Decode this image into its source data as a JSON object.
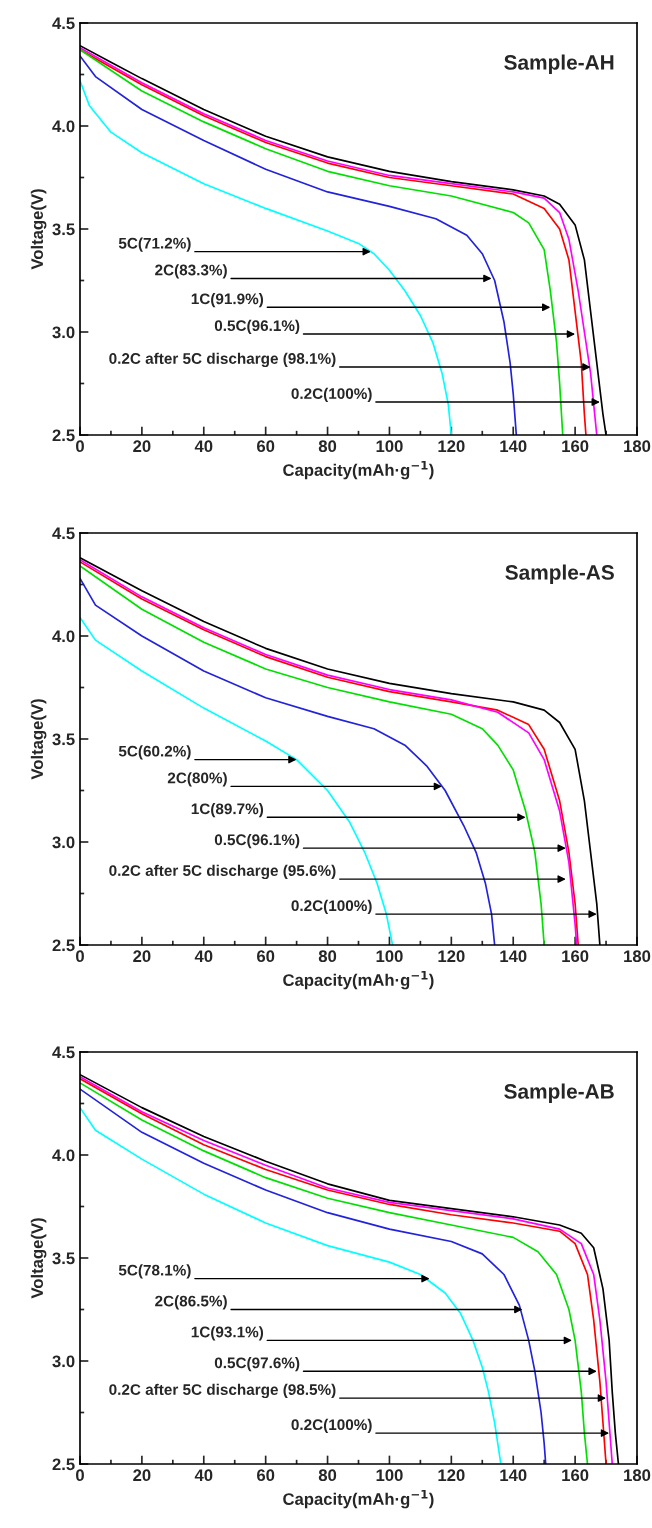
{
  "chart_data": [
    {
      "type": "line",
      "title": "Sample-AH",
      "xlabel": "Capacity(mAh·g$^{−1}$)",
      "ylabel": "Voltage(V)",
      "xlim": [
        0,
        180
      ],
      "ylim": [
        2.5,
        4.5
      ],
      "xticks": [
        0,
        {
          "value": 10,
          "label": null
        },
        20,
        {
          "value": 30,
          "label": null
        },
        40,
        {
          "value": 50,
          "label": null
        },
        60,
        {
          "value": 70,
          "label": null
        },
        80,
        {
          "value": 90,
          "label": null
        },
        100,
        {
          "value": 110,
          "label": null
        },
        120,
        {
          "value": 130,
          "label": null
        },
        140,
        {
          "value": 150,
          "label": null
        },
        160,
        {
          "value": 170,
          "label": null
        },
        180
      ],
      "yticks": [
        {
          "value": 2.5,
          "label": "2.5"
        },
        {
          "value": 2.75,
          "label": null
        },
        {
          "value": 3.0,
          "label": "3.0"
        },
        {
          "value": 3.25,
          "label": null
        },
        {
          "value": 3.5,
          "label": "3.5"
        },
        {
          "value": 3.75,
          "label": null
        },
        {
          "value": 4.0,
          "label": "4.0"
        },
        {
          "value": 4.25,
          "label": null
        },
        {
          "value": 4.5,
          "label": "4.5"
        }
      ],
      "grid": false,
      "legend": false,
      "marker": "none",
      "line_style": "solid",
      "series": [
        {
          "color": "#000000",
          "x": [
            0,
            10,
            20,
            40,
            60,
            80,
            100,
            120,
            140,
            150,
            155,
            160,
            163,
            165,
            167,
            169,
            170
          ],
          "values": [
            4.39,
            4.31,
            4.23,
            4.08,
            3.95,
            3.85,
            3.78,
            3.73,
            3.69,
            3.66,
            3.62,
            3.52,
            3.35,
            3.1,
            2.85,
            2.6,
            2.5
          ]
        },
        {
          "color": "#ff00ff",
          "x": [
            0,
            20,
            40,
            60,
            80,
            100,
            120,
            140,
            150,
            155,
            158,
            161,
            163,
            165,
            166,
            167
          ],
          "values": [
            4.38,
            4.21,
            4.06,
            3.93,
            3.83,
            3.76,
            3.72,
            3.68,
            3.65,
            3.58,
            3.45,
            3.2,
            3.0,
            2.8,
            2.65,
            2.5
          ]
        },
        {
          "color": "#ff0000",
          "x": [
            0,
            20,
            40,
            60,
            80,
            100,
            120,
            140,
            150,
            155,
            158,
            160,
            162,
            163,
            163.5
          ],
          "values": [
            4.37,
            4.2,
            4.05,
            3.92,
            3.82,
            3.75,
            3.71,
            3.67,
            3.6,
            3.5,
            3.35,
            3.1,
            2.85,
            2.6,
            2.5
          ]
        },
        {
          "color": "#00e000",
          "x": [
            0,
            20,
            40,
            60,
            80,
            100,
            120,
            140,
            145,
            150,
            152,
            154,
            155,
            156
          ],
          "values": [
            4.37,
            4.17,
            4.02,
            3.89,
            3.78,
            3.71,
            3.66,
            3.58,
            3.53,
            3.4,
            3.2,
            2.95,
            2.75,
            2.5
          ]
        },
        {
          "color": "#2222dd",
          "x": [
            0,
            5,
            20,
            40,
            60,
            80,
            100,
            115,
            125,
            130,
            134,
            137,
            139,
            140,
            141
          ],
          "values": [
            4.34,
            4.24,
            4.08,
            3.93,
            3.79,
            3.68,
            3.61,
            3.55,
            3.47,
            3.38,
            3.25,
            3.05,
            2.85,
            2.7,
            2.5
          ]
        },
        {
          "color": "#00ffff",
          "x": [
            0,
            3,
            10,
            20,
            40,
            60,
            80,
            90,
            95,
            100,
            105,
            110,
            114,
            117,
            119,
            120
          ],
          "values": [
            4.22,
            4.1,
            3.97,
            3.87,
            3.72,
            3.6,
            3.49,
            3.43,
            3.38,
            3.3,
            3.2,
            3.08,
            2.95,
            2.8,
            2.65,
            2.5
          ]
        }
      ],
      "annotations": [
        {
          "text": "5C(71.2%)",
          "x": 94,
          "y": 3.39
        },
        {
          "text": "2C(83.3%)",
          "x": 133,
          "y": 3.26
        },
        {
          "text": "1C(91.9%)",
          "x": 152,
          "y": 3.12
        },
        {
          "text": "0.5C(96.1%)",
          "x": 160,
          "y": 2.99
        },
        {
          "text": "0.2C after 5C discharge (98.1%)",
          "x": 165,
          "y": 2.83
        },
        {
          "text": "0.2C(100%)",
          "x": 168,
          "y": 2.66
        }
      ]
    },
    {
      "type": "line",
      "title": "Sample-AS",
      "xlabel": "Capacity(mAh·g$^{−1}$)",
      "ylabel": "Voltage(V)",
      "xlim": [
        0,
        180
      ],
      "ylim": [
        2.5,
        4.5
      ],
      "xticks": [
        0,
        {
          "value": 10,
          "label": null
        },
        20,
        {
          "value": 30,
          "label": null
        },
        40,
        {
          "value": 50,
          "label": null
        },
        60,
        {
          "value": 70,
          "label": null
        },
        80,
        {
          "value": 90,
          "label": null
        },
        100,
        {
          "value": 110,
          "label": null
        },
        120,
        {
          "value": 130,
          "label": null
        },
        140,
        {
          "value": 150,
          "label": null
        },
        160,
        {
          "value": 170,
          "label": null
        },
        180
      ],
      "yticks": [
        {
          "value": 2.5,
          "label": "2.5"
        },
        {
          "value": 2.75,
          "label": null
        },
        {
          "value": 3.0,
          "label": "3.0"
        },
        {
          "value": 3.25,
          "label": null
        },
        {
          "value": 3.5,
          "label": "3.5"
        },
        {
          "value": 3.75,
          "label": null
        },
        {
          "value": 4.0,
          "label": "4.0"
        },
        {
          "value": 4.25,
          "label": null
        },
        {
          "value": 4.5,
          "label": "4.5"
        }
      ],
      "grid": false,
      "legend": false,
      "marker": "none",
      "line_style": "solid",
      "series": [
        {
          "color": "#000000",
          "x": [
            0,
            20,
            40,
            60,
            80,
            100,
            120,
            140,
            150,
            155,
            160,
            163,
            165,
            167,
            168
          ],
          "values": [
            4.38,
            4.22,
            4.07,
            3.94,
            3.84,
            3.77,
            3.72,
            3.68,
            3.64,
            3.58,
            3.45,
            3.2,
            2.95,
            2.7,
            2.5
          ]
        },
        {
          "color": "#ff0000",
          "x": [
            0,
            20,
            40,
            60,
            80,
            100,
            120,
            135,
            145,
            150,
            155,
            158,
            160,
            161
          ],
          "values": [
            4.36,
            4.18,
            4.03,
            3.9,
            3.8,
            3.73,
            3.68,
            3.64,
            3.57,
            3.45,
            3.2,
            2.95,
            2.7,
            2.5
          ]
        },
        {
          "color": "#ff00ff",
          "x": [
            0,
            20,
            40,
            60,
            80,
            100,
            120,
            135,
            145,
            150,
            155,
            158,
            160,
            160.5
          ],
          "values": [
            4.37,
            4.19,
            4.04,
            3.91,
            3.81,
            3.74,
            3.69,
            3.63,
            3.53,
            3.4,
            3.15,
            2.9,
            2.6,
            2.5
          ]
        },
        {
          "color": "#00e000",
          "x": [
            0,
            20,
            40,
            60,
            80,
            100,
            120,
            130,
            135,
            140,
            144,
            147,
            149,
            150
          ],
          "values": [
            4.34,
            4.13,
            3.97,
            3.84,
            3.75,
            3.68,
            3.62,
            3.55,
            3.47,
            3.35,
            3.15,
            2.95,
            2.7,
            2.5
          ]
        },
        {
          "color": "#2222dd",
          "x": [
            0,
            5,
            20,
            40,
            60,
            80,
            95,
            105,
            112,
            118,
            124,
            128,
            131,
            133,
            134
          ],
          "values": [
            4.28,
            4.15,
            4.0,
            3.83,
            3.7,
            3.61,
            3.55,
            3.47,
            3.37,
            3.25,
            3.08,
            2.95,
            2.8,
            2.65,
            2.5
          ]
        },
        {
          "color": "#00ffff",
          "x": [
            0,
            5,
            20,
            40,
            60,
            70,
            80,
            87,
            92,
            96,
            99,
            101
          ],
          "values": [
            4.09,
            3.98,
            3.83,
            3.65,
            3.49,
            3.4,
            3.25,
            3.1,
            2.95,
            2.8,
            2.65,
            2.5
          ]
        }
      ],
      "annotations": [
        {
          "text": "5C(60.2%)",
          "x": 70,
          "y": 3.4
        },
        {
          "text": "2C(80%)",
          "x": 117,
          "y": 3.27
        },
        {
          "text": "1C(89.7%)",
          "x": 144,
          "y": 3.12
        },
        {
          "text": "0.5C(96.1%)",
          "x": 157,
          "y": 2.97
        },
        {
          "text": "0.2C after 5C discharge (95.6%)",
          "x": 157,
          "y": 2.82
        },
        {
          "text": "0.2C(100%)",
          "x": 167,
          "y": 2.65
        }
      ]
    },
    {
      "type": "line",
      "title": "Sample-AB",
      "xlabel": "Capacity(mAh·g$^{−1}$)",
      "ylabel": "Voltage(V)",
      "xlim": [
        0,
        180
      ],
      "ylim": [
        2.5,
        4.5
      ],
      "xticks": [
        0,
        {
          "value": 10,
          "label": null
        },
        20,
        {
          "value": 30,
          "label": null
        },
        40,
        {
          "value": 50,
          "label": null
        },
        60,
        {
          "value": 70,
          "label": null
        },
        80,
        {
          "value": 90,
          "label": null
        },
        100,
        {
          "value": 110,
          "label": null
        },
        120,
        {
          "value": 130,
          "label": null
        },
        140,
        {
          "value": 150,
          "label": null
        },
        160,
        {
          "value": 170,
          "label": null
        },
        180
      ],
      "yticks": [
        {
          "value": 2.5,
          "label": "2.5"
        },
        {
          "value": 2.75,
          "label": null
        },
        {
          "value": 3.0,
          "label": "3.0"
        },
        {
          "value": 3.25,
          "label": null
        },
        {
          "value": 3.5,
          "label": "3.5"
        },
        {
          "value": 3.75,
          "label": null
        },
        {
          "value": 4.0,
          "label": "4.0"
        },
        {
          "value": 4.25,
          "label": null
        },
        {
          "value": 4.5,
          "label": "4.5"
        }
      ],
      "grid": false,
      "legend": false,
      "marker": "none",
      "line_style": "solid",
      "series": [
        {
          "color": "#000000",
          "x": [
            0,
            20,
            40,
            60,
            80,
            100,
            120,
            140,
            155,
            162,
            166,
            169,
            171,
            172,
            173,
            174
          ],
          "values": [
            4.39,
            4.23,
            4.09,
            3.97,
            3.86,
            3.78,
            3.74,
            3.7,
            3.66,
            3.62,
            3.55,
            3.35,
            3.1,
            2.85,
            2.65,
            2.5
          ]
        },
        {
          "color": "#ff00ff",
          "x": [
            0,
            20,
            40,
            60,
            80,
            100,
            120,
            140,
            155,
            162,
            166,
            168,
            170,
            171,
            172
          ],
          "values": [
            4.38,
            4.21,
            4.07,
            3.95,
            3.84,
            3.77,
            3.73,
            3.69,
            3.64,
            3.57,
            3.42,
            3.2,
            2.9,
            2.7,
            2.5
          ]
        },
        {
          "color": "#ff0000",
          "x": [
            0,
            20,
            40,
            60,
            80,
            100,
            120,
            140,
            155,
            160,
            164,
            166,
            168,
            169,
            170
          ],
          "values": [
            4.37,
            4.2,
            4.05,
            3.93,
            3.83,
            3.76,
            3.71,
            3.67,
            3.63,
            3.57,
            3.42,
            3.2,
            2.9,
            2.7,
            2.5
          ]
        },
        {
          "color": "#00e000",
          "x": [
            0,
            20,
            40,
            60,
            80,
            100,
            120,
            140,
            148,
            154,
            158,
            160,
            162,
            163,
            164
          ],
          "values": [
            4.35,
            4.17,
            4.02,
            3.89,
            3.79,
            3.72,
            3.66,
            3.6,
            3.53,
            3.42,
            3.25,
            3.1,
            2.85,
            2.65,
            2.5
          ]
        },
        {
          "color": "#2222dd",
          "x": [
            0,
            20,
            40,
            60,
            80,
            100,
            120,
            130,
            137,
            142,
            145,
            147,
            149,
            150,
            150.5
          ],
          "values": [
            4.32,
            4.11,
            3.96,
            3.83,
            3.72,
            3.64,
            3.58,
            3.52,
            3.42,
            3.27,
            3.1,
            2.95,
            2.75,
            2.6,
            2.5
          ]
        },
        {
          "color": "#00ffff",
          "x": [
            0,
            5,
            20,
            40,
            60,
            80,
            100,
            110,
            118,
            123,
            127,
            130,
            132,
            134,
            136
          ],
          "values": [
            4.23,
            4.12,
            3.98,
            3.81,
            3.67,
            3.56,
            3.48,
            3.42,
            3.33,
            3.23,
            3.1,
            2.97,
            2.85,
            2.7,
            2.5
          ]
        }
      ],
      "annotations": [
        {
          "text": "5C(78.1%)",
          "x": 113,
          "y": 3.4
        },
        {
          "text": "2C(86.5%)",
          "x": 143,
          "y": 3.25
        },
        {
          "text": "1C(93.1%)",
          "x": 159,
          "y": 3.1
        },
        {
          "text": "0.5C(97.6%)",
          "x": 167,
          "y": 2.95
        },
        {
          "text": "0.2C after 5C discharge (98.5%)",
          "x": 170,
          "y": 2.82
        },
        {
          "text": "0.2C(100%)",
          "x": 171,
          "y": 2.65
        }
      ]
    }
  ]
}
